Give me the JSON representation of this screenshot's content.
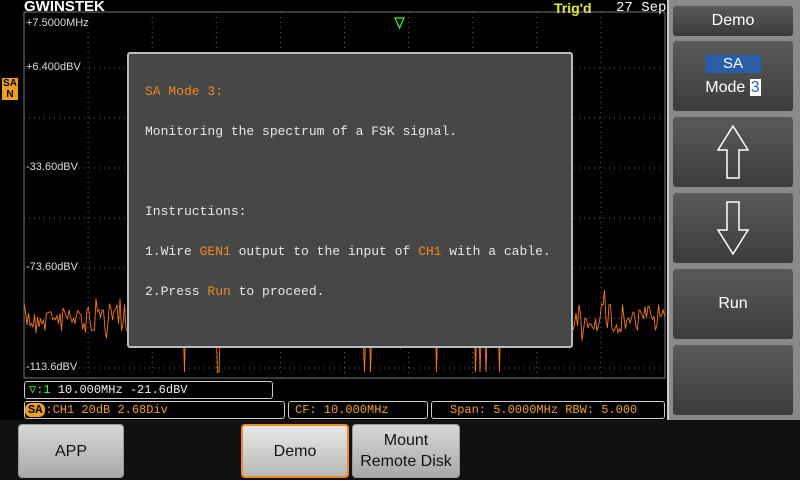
{
  "header": {
    "brand": "GWINSTEK",
    "trigger": "Trig'd",
    "date": "27 Sep",
    "frequency": "+7.5000MHz"
  },
  "y_labels": [
    "+6.400dBV",
    "-33.60dBV",
    "-73.60dBV",
    "-113.6dBV"
  ],
  "mode_badge": {
    "top": "SA",
    "bottom": "N"
  },
  "dialog": {
    "title": "SA Mode 3:",
    "description": "Monitoring the spectrum of a FSK signal.",
    "heading": "Instructions:",
    "step1": [
      "1.Wire ",
      "GEN1",
      " output to the input of ",
      "CH1",
      " with a cable."
    ],
    "step2": [
      "2.Press ",
      "Run",
      " to proceed."
    ]
  },
  "marker": {
    "id": "▽:1",
    "frequency": "10.000MHz",
    "level": "-21.6dBV"
  },
  "status": {
    "mode": "SA",
    "source": ":CH1",
    "scale": "20dB",
    "position": "2.68Div",
    "center": "CF: 10.000MHz",
    "span": "Span: 5.0000MHz",
    "rbw": "RBW: 5.000"
  },
  "side_menu": {
    "title": "Demo",
    "mode_label": "SA",
    "mode_text": "Mode",
    "mode_number": "3",
    "run": "Run"
  },
  "soft_keys": {
    "app": "APP",
    "demo": "Demo",
    "mount": [
      "Mount",
      "Remote Disk"
    ]
  }
}
